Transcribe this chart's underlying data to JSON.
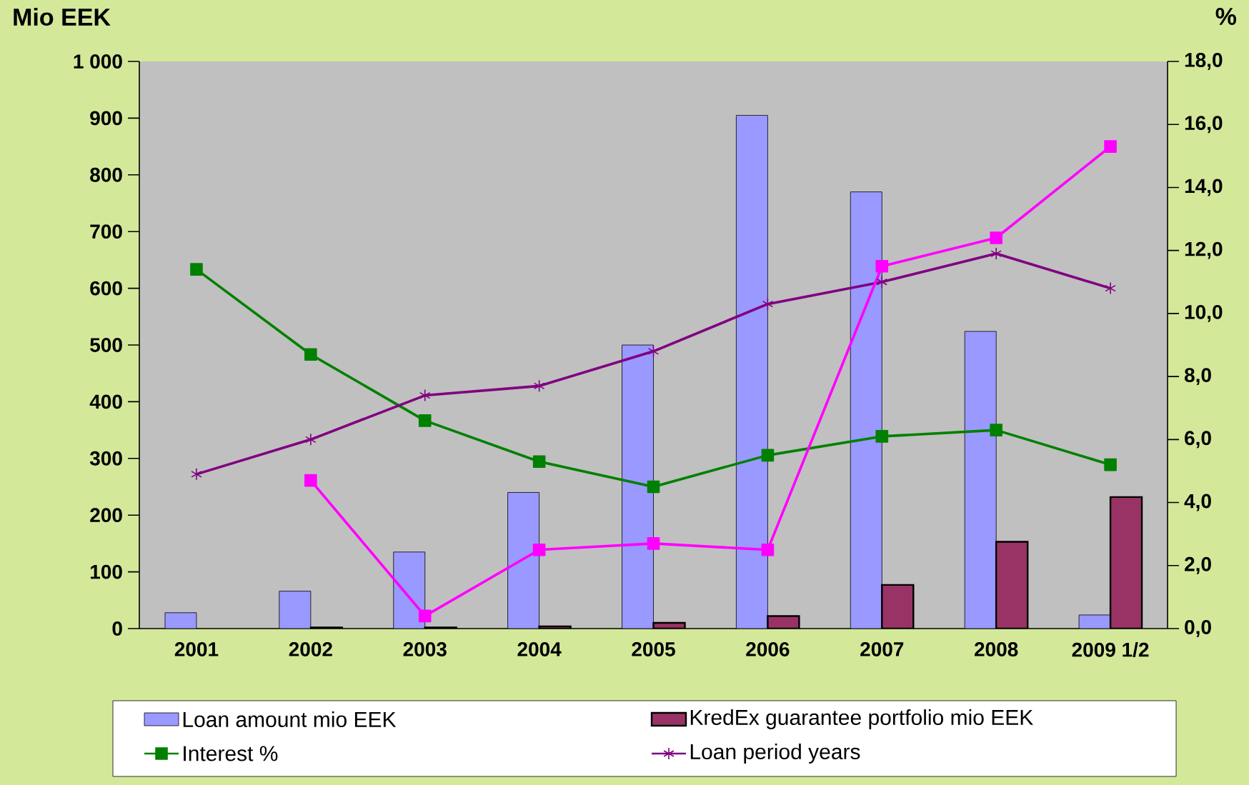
{
  "chart_data": {
    "type": "bar",
    "ylabel": "Mio EEK",
    "y2label": "%",
    "categories": [
      "2001",
      "2002",
      "2003",
      "2004",
      "2005",
      "2006",
      "2007",
      "2008",
      "2009 1/2"
    ],
    "series": [
      {
        "name": "Loan amount  mio EEK",
        "color": "#9999ff",
        "values": [
          28,
          66,
          135,
          240,
          500,
          905,
          770,
          524,
          24
        ]
      },
      {
        "name": "KredEx guarantee portfolio mio EEK",
        "color": "#993366",
        "values": [
          null,
          2,
          2,
          4,
          10,
          22,
          77,
          153,
          232
        ]
      },
      {
        "name": "Interest %",
        "type": "line",
        "axis": "y2",
        "marker": "square",
        "color": "#008000",
        "values": [
          11.4,
          8.7,
          6.6,
          5.3,
          4.5,
          5.5,
          6.1,
          6.3,
          5.2
        ]
      },
      {
        "name": "Loan period years",
        "type": "line",
        "axis": "y2",
        "marker": "cross",
        "color": "#800080",
        "values": [
          4.9,
          6.0,
          7.4,
          7.7,
          8.8,
          10.3,
          11.0,
          11.9,
          10.8
        ]
      },
      {
        "type": "line",
        "axis": "y2",
        "marker": "square",
        "color": "#ff00ff",
        "values": [
          null,
          4.7,
          0.4,
          2.5,
          2.7,
          2.5,
          11.5,
          12.4,
          15.3
        ]
      }
    ],
    "ylim": [
      0,
      1000
    ],
    "yticks": [
      0,
      100,
      200,
      300,
      400,
      500,
      600,
      700,
      800,
      900,
      {
        "value": 1000,
        "label": "1 000"
      }
    ],
    "y2lim": [
      0,
      18
    ],
    "y2ticks": [
      {
        "value": 0,
        "label": "0,0"
      },
      {
        "value": 2,
        "label": "2,0"
      },
      {
        "value": 4,
        "label": "4,0"
      },
      {
        "value": 6,
        "label": "6,0"
      },
      {
        "value": 8,
        "label": "8,0"
      },
      {
        "value": 10,
        "label": "10,0"
      },
      {
        "value": 12,
        "label": "12,0"
      },
      {
        "value": 14,
        "label": "14,0"
      },
      {
        "value": 16,
        "label": "16,0"
      },
      {
        "value": 18,
        "label": "18,0"
      }
    ],
    "legend": "bottom",
    "grid": false
  }
}
